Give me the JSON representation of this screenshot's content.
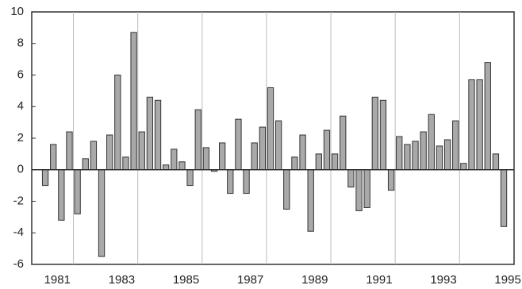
{
  "chart_data": {
    "type": "bar",
    "categories": [
      null,
      "1981",
      null,
      null,
      null,
      null,
      null,
      null,
      null,
      "1983",
      null,
      null,
      null,
      null,
      null,
      null,
      null,
      "1985",
      null,
      null,
      null,
      null,
      null,
      null,
      null,
      "1987",
      null,
      null,
      null,
      null,
      null,
      null,
      null,
      "1989",
      null,
      null,
      null,
      null,
      null,
      null,
      null,
      "1991",
      null,
      null,
      null,
      null,
      null,
      null,
      null,
      "1993",
      null,
      null,
      null,
      null,
      null,
      null,
      null,
      "1995"
    ],
    "values": [
      -1.0,
      1.6,
      -3.2,
      2.4,
      -2.8,
      0.7,
      1.8,
      -5.5,
      2.2,
      6.0,
      0.8,
      8.7,
      2.4,
      4.6,
      4.4,
      0.3,
      1.3,
      0.5,
      -1.0,
      3.8,
      1.4,
      -0.1,
      1.7,
      -1.5,
      3.2,
      -1.5,
      1.7,
      2.7,
      5.2,
      3.1,
      -2.5,
      0.8,
      2.2,
      -3.9,
      1.0,
      2.5,
      1.0,
      3.4,
      -1.1,
      -2.6,
      -2.4,
      4.6,
      4.4,
      -1.3,
      2.1,
      1.6,
      1.8,
      2.4,
      3.5,
      1.5,
      1.9,
      3.1,
      0.4,
      5.7,
      5.7,
      6.8,
      1.0,
      -3.6
    ],
    "color": "#a9a9a9",
    "ylim": [
      -6,
      10
    ],
    "yticks": [
      -6,
      -4,
      -2,
      0,
      2,
      4,
      6,
      8,
      10
    ]
  }
}
